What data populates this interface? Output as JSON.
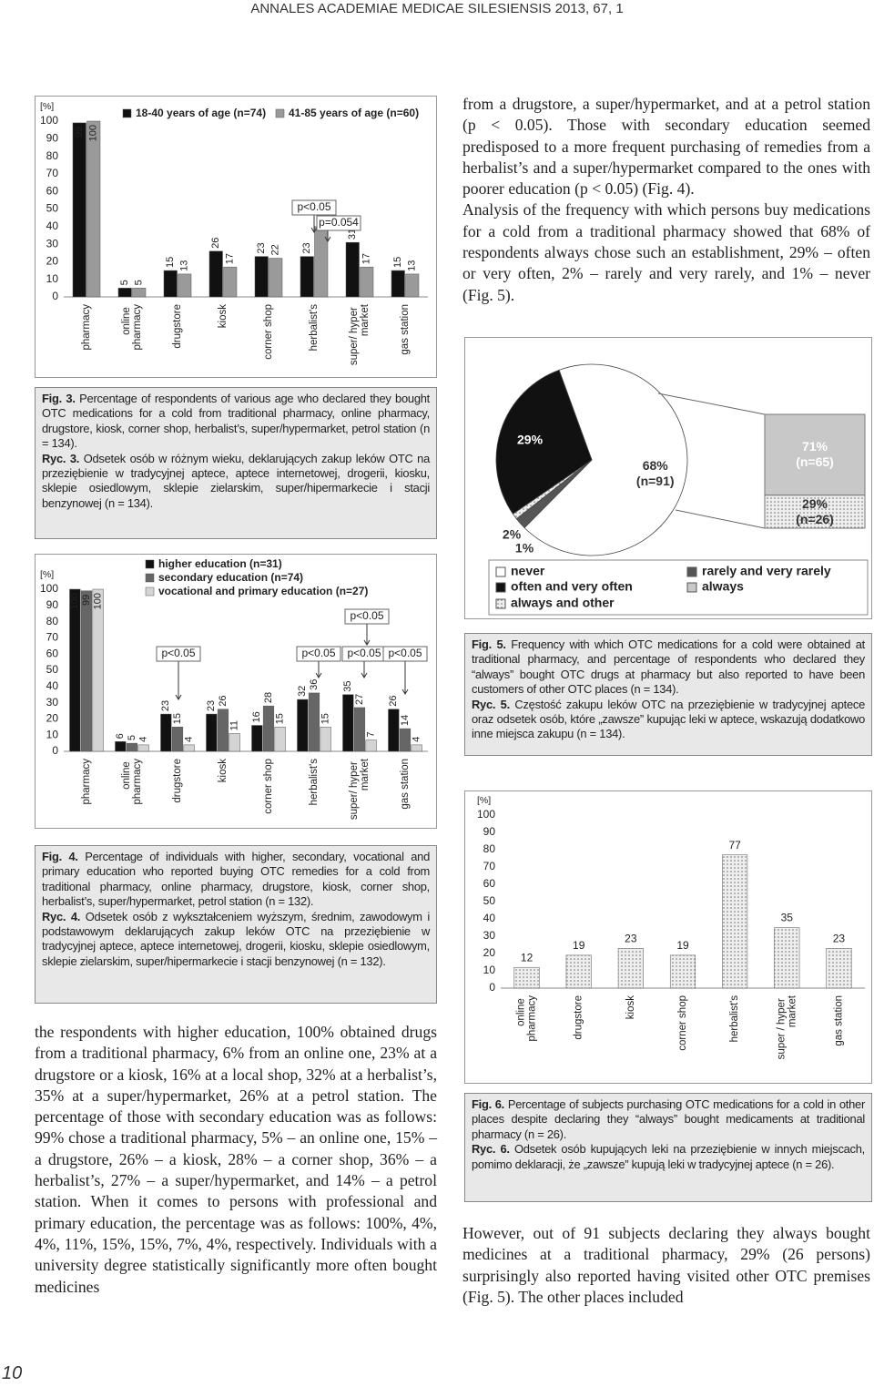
{
  "header": {
    "running_title": "ANNALES ACADEMIAE MEDICAE SILESIENSIS 2013, 67, 1",
    "page_number": "10"
  },
  "body": {
    "right_top": [
      "from a drugstore, a super/hypermarket, and at a petrol station (p < 0.05). Those with secondary education seemed predisposed to a more frequent purchasing of remedies from a herbalist’s and a super/hypermarket compared to the ones with poorer education (p < 0.05) (Fig. 4).",
      "Analysis of the frequency with which persons buy medications for a cold from a traditional pharmacy showed that 68% of respondents always chose such an establishment, 29% – often or very often, 2% – rarely and very rarely, and 1% – never (Fig. 5)."
    ],
    "left_bottom": "the respondents with higher education, 100% obtained drugs from a traditional pharmacy, 6% from an online one, 23% at a drugstore or a kiosk, 16% at a local shop, 32% at a herbalist’s, 35% at a super/hypermarket, 26% at a petrol station. The percentage of those with secondary education was as follows: 99% chose a traditional pharmacy, 5% – an online one, 15% – a drugstore, 26% – a kiosk, 28% – a corner shop, 36% – a herbalist’s, 27% – a super/hypermarket, and 14% – a petrol station. When it comes to persons with professional and primary education, the percentage was as follows: 100%, 4%, 4%, 11%, 15%, 15%, 7%, 4%, respectively. Individuals with a university degree statistically significantly more often bought medicines",
    "right_bottom": "However, out of 91 subjects declaring they always bought medicines at a traditional pharmacy, 29% (26 persons) surprisingly also reported having visited other OTC premises (Fig. 5). The other places included"
  },
  "captions": [
    {
      "label_en": "Fig. 3.",
      "text_en": "Percentage of respondents of various age who declared they bought OTC medications for a cold from traditional pharmacy, online pharmacy, drugstore, kiosk, corner shop, herbalist’s, super/hypermarket, petrol station (n = 134).",
      "label_pl": "Ryc. 3.",
      "text_pl": "Odsetek osób w różnym wieku, deklarujących zakup leków OTC na przeziębienie w tradycyjnej aptece, aptece internetowej, drogerii, kiosku, sklepie osiedlowym, sklepie zielarskim, super/hipermarkecie i stacji benzynowej (n = 134)."
    },
    {
      "label_en": "Fig. 4.",
      "text_en": "Percentage of individuals with higher, secondary, vocational and primary education who reported buying OTC remedies for a cold from traditional pharmacy, online pharmacy, drugstore, kiosk, corner shop, herbalist’s, super/hypermarket, petrol station (n = 132).",
      "label_pl": "Ryc. 4.",
      "text_pl": "Odsetek osób z wykształceniem wyższym, średnim, zawodowym i podstawowym deklarujących zakup leków OTC na przeziębienie w tradycyjnej aptece, aptece internetowej, drogerii, kiosku, sklepie osiedlowym, sklepie zielarskim, super/hipermarkecie i stacji benzynowej (n = 132)."
    },
    {
      "label_en": "Fig. 5.",
      "text_en": "Frequency with which OTC medications for a cold were obtained at traditional pharmacy, and percentage of respondents who declared they “always” bought OTC drugs at pharmacy but also reported to have been customers of other OTC places (n = 134).",
      "label_pl": "Ryc. 5.",
      "text_pl": "Częstość zakupu leków OTC na przeziębienie w tradycyjnej aptece oraz odsetek osób, które „zawsze” kupując leki w aptece, wskazują dodatkowo inne miejsca zakupu (n = 134)."
    },
    {
      "label_en": "Fig. 6.",
      "text_en": "Percentage of subjects purchasing OTC medications for a cold in other places despite declaring they “always” bought medicaments at traditional pharmacy (n = 26).",
      "label_pl": "Ryc. 6.",
      "text_pl": "Odsetek osób kupujących leki na przeziębienie w innych miejscach, pomimo deklaracji, że „zawsze” kupują leki w tradycyjnej aptece (n = 26)."
    }
  ],
  "chart_data": [
    {
      "type": "bar",
      "ylabel": "[%]",
      "ylim": [
        0,
        100
      ],
      "yticks": [
        0,
        10,
        20,
        30,
        40,
        50,
        60,
        70,
        80,
        90,
        100
      ],
      "grid": false,
      "categories": [
        "pharmacy",
        "online pharmacy",
        "drugstore",
        "kiosk",
        "corner shop",
        "herbalist's",
        "super/ hyper market",
        "gas station"
      ],
      "series": [
        {
          "name": "18-40 years of age (n=74)",
          "color": "#111111",
          "values": [
            99,
            5,
            15,
            26,
            23,
            23,
            31,
            15
          ]
        },
        {
          "name": "41-85 years of age (n=60)",
          "color": "#9a9a9a",
          "values": [
            100,
            5,
            13,
            17,
            22,
            40,
            17,
            13
          ]
        }
      ],
      "annotations": [
        "p<0.05",
        "p=0.054"
      ]
    },
    {
      "type": "bar",
      "ylabel": "[%]",
      "ylim": [
        0,
        100
      ],
      "yticks": [
        0,
        10,
        20,
        30,
        40,
        50,
        60,
        70,
        80,
        90,
        100
      ],
      "grid": false,
      "categories": [
        "pharmacy",
        "online pharmacy",
        "drugstore",
        "kiosk",
        "corner shop",
        "herbalist's",
        "super/ hyper market",
        "gas station"
      ],
      "series": [
        {
          "name": "higher education (n=31)",
          "color": "#111111",
          "values": [
            100,
            6,
            23,
            23,
            16,
            32,
            35,
            26
          ]
        },
        {
          "name": "secondary education (n=74)",
          "color": "#666666",
          "values": [
            99,
            5,
            15,
            26,
            28,
            36,
            27,
            14
          ]
        },
        {
          "name": "vocational and primary education (n=27)",
          "color": "#d4d4d4",
          "values": [
            100,
            4,
            4,
            11,
            15,
            15,
            7,
            4
          ]
        }
      ],
      "annotations": [
        "p<0.05",
        "p<0.05",
        "p<0.05",
        "p<0.05",
        "p<0.05"
      ]
    },
    {
      "type": "pie",
      "slices": [
        {
          "value": 68,
          "label": "68%\n(n=91)",
          "color": "#ffffff"
        },
        {
          "value": 2,
          "label": "2%",
          "color": "#555555"
        },
        {
          "value": 1,
          "label": "1%",
          "color": "#eeeeee",
          "pattern": "dots"
        },
        {
          "value": 29,
          "label": "29%",
          "color": "#111111"
        }
      ],
      "stack": [
        {
          "value": 71,
          "label": "71%\n(n=65)",
          "color": "#c8c8c8"
        },
        {
          "value": 29,
          "label": "29%\n(n=26)",
          "color": "#eeeeee",
          "pattern": "dots"
        }
      ],
      "legend": [
        {
          "name": "never",
          "color": "#ffffff"
        },
        {
          "name": "rarely and very rarely",
          "color": "#555555"
        },
        {
          "name": "often and very often",
          "color": "#111111"
        },
        {
          "name": "always",
          "color": "#c8c8c8"
        },
        {
          "name": "always and other",
          "color": "#eeeeee",
          "pattern": "dots"
        }
      ]
    },
    {
      "type": "bar",
      "ylabel": "[%]",
      "ylim": [
        0,
        100
      ],
      "yticks": [
        0,
        10,
        20,
        30,
        40,
        50,
        60,
        70,
        80,
        90,
        100
      ],
      "grid": false,
      "categories": [
        "online pharmacy",
        "drugstore",
        "kiosk",
        "corner shop",
        "herbalist's",
        "super / hyper market",
        "gas station"
      ],
      "values": [
        12,
        19,
        23,
        19,
        77,
        35,
        23
      ],
      "color": "#eeeeee",
      "pattern": "dots"
    }
  ]
}
